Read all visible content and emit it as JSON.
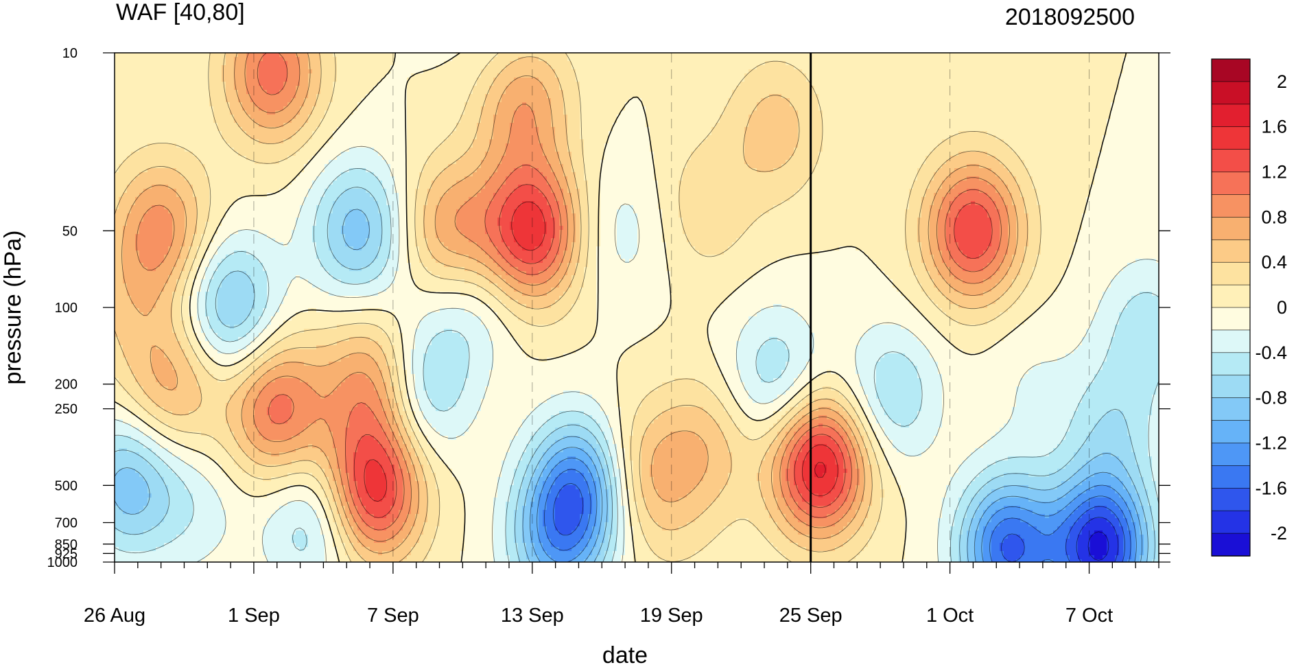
{
  "chart_data": {
    "type": "heatmap",
    "title": "WAF [40,80]",
    "subtitle": "2018092500",
    "xlabel": "date",
    "ylabel": "pressure (hPa)",
    "x_tick_labels": [
      "26 Aug",
      "1 Sep",
      "7 Sep",
      "13 Sep",
      "19 Sep",
      "25 Sep",
      "1 Oct",
      "7 Oct"
    ],
    "x_tick_days": [
      0,
      6,
      12,
      18,
      24,
      30,
      36,
      42
    ],
    "x_range_days": [
      0,
      45
    ],
    "y_levels": [
      10,
      50,
      100,
      200,
      250,
      500,
      700,
      850,
      925,
      1000
    ],
    "y_tick_labels": [
      "10",
      "50",
      "100",
      "200",
      "250",
      "500",
      "700",
      "850",
      "925",
      "1000"
    ],
    "y_scale": "log",
    "y_range": [
      10,
      1000
    ],
    "analysis_date_day": 30,
    "colorbar": {
      "labels": [
        "2",
        "1.6",
        "1.2",
        "0.8",
        "0.4",
        "0",
        "-0.4",
        "-0.8",
        "-1.2",
        "-1.6",
        "-2"
      ],
      "label_values": [
        2,
        1.6,
        1.2,
        0.8,
        0.4,
        0,
        -0.4,
        -0.8,
        -1.2,
        -1.6,
        -2
      ],
      "levels": [
        -2.2,
        -2.0,
        -1.8,
        -1.6,
        -1.4,
        -1.2,
        -1.0,
        -0.8,
        -0.6,
        -0.4,
        -0.2,
        0,
        0.2,
        0.4,
        0.6,
        0.8,
        1.0,
        1.2,
        1.4,
        1.6,
        1.8,
        2.0,
        2.2
      ],
      "colors": [
        "#1a0fd6",
        "#2433e6",
        "#2f56ed",
        "#3a78f2",
        "#4e97f6",
        "#66b3f8",
        "#83c9f7",
        "#9ddbf4",
        "#b5eaf5",
        "#ddf8f8",
        "#fffce0",
        "#fff0b8",
        "#fde2a0",
        "#fccb87",
        "#f8b070",
        "#f79262",
        "#f67258",
        "#f34e48",
        "#ee3538",
        "#e21f2f",
        "#c90f26",
        "#a80624"
      ]
    },
    "features": [
      {
        "day": 6.8,
        "p": 12,
        "value": 1.1
      },
      {
        "day": 2.0,
        "p": 50,
        "value": 0.9
      },
      {
        "day": 5.0,
        "p": 100,
        "value": -0.9
      },
      {
        "day": 10.5,
        "p": 50,
        "value": -0.9
      },
      {
        "day": 2.5,
        "p": 200,
        "value": 0.7
      },
      {
        "day": 7.0,
        "p": 250,
        "value": 1.1
      },
      {
        "day": 11.2,
        "p": 520,
        "value": 1.5
      },
      {
        "day": 11.1,
        "p": 200,
        "value": 0.9
      },
      {
        "day": 13.2,
        "p": 210,
        "value": -0.7
      },
      {
        "day": 14.5,
        "p": 50,
        "value": 0.8
      },
      {
        "day": 18.0,
        "p": 50,
        "value": 1.5
      },
      {
        "day": 17.5,
        "p": 15,
        "value": 0.9
      },
      {
        "day": 20.0,
        "p": 510,
        "value": -1.3
      },
      {
        "day": 19.0,
        "p": 850,
        "value": -0.9
      },
      {
        "day": 21.8,
        "p": 50,
        "value": -0.3
      },
      {
        "day": 15.2,
        "p": 100,
        "value": -0.4
      },
      {
        "day": 22.9,
        "p": 460,
        "value": 0.6
      },
      {
        "day": 25.5,
        "p": 350,
        "value": 0.5
      },
      {
        "day": 28.5,
        "p": 190,
        "value": -0.6
      },
      {
        "day": 30.4,
        "p": 420,
        "value": 1.7
      },
      {
        "day": 37.0,
        "p": 50,
        "value": 1.4
      },
      {
        "day": 33.5,
        "p": 220,
        "value": -0.6
      },
      {
        "day": 0.6,
        "p": 500,
        "value": -0.9
      },
      {
        "day": 42.5,
        "p": 880,
        "value": -2.0
      },
      {
        "day": 38.5,
        "p": 880,
        "value": -1.6
      },
      {
        "day": 16.8,
        "p": 10,
        "value": -0.3
      },
      {
        "day": 0.4,
        "p": 100,
        "value": 0.3
      },
      {
        "day": 3.5,
        "p": 600,
        "value": -0.3
      },
      {
        "day": 44.5,
        "p": 120,
        "value": -0.5
      },
      {
        "day": 25.5,
        "p": 40,
        "value": 0.35
      },
      {
        "day": 28.5,
        "p": 20,
        "value": 0.5
      },
      {
        "day": 39.5,
        "p": 200,
        "value": -0.2
      },
      {
        "day": 43.0,
        "p": 300,
        "value": -0.5
      },
      {
        "day": 8.5,
        "p": 700,
        "value": -0.6
      },
      {
        "day": 24.5,
        "p": 800,
        "value": 0.1
      }
    ]
  }
}
